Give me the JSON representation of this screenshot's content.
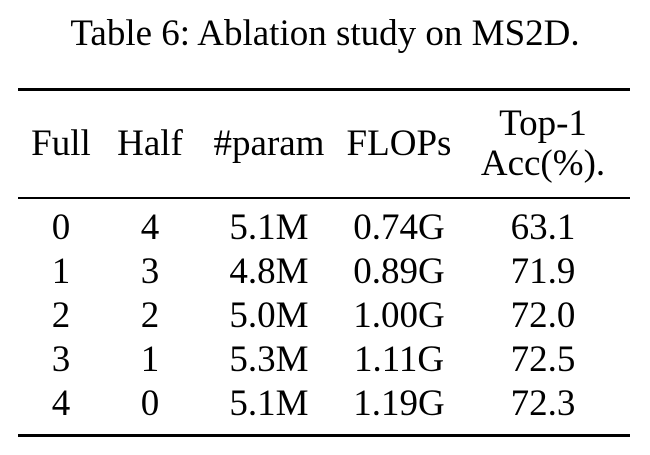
{
  "caption": "Table 6: Ablation study on MS2D.",
  "table": {
    "headers": [
      {
        "key": "full",
        "line1": "Full",
        "line2": ""
      },
      {
        "key": "half",
        "line1": "Half",
        "line2": ""
      },
      {
        "key": "param",
        "line1": "#param",
        "line2": ""
      },
      {
        "key": "flops",
        "line1": "FLOPs",
        "line2": ""
      },
      {
        "key": "acc",
        "line1": "Top-1",
        "line2": "Acc(%)."
      }
    ],
    "rows": [
      [
        "0",
        "4",
        "5.1M",
        "0.74G",
        "63.1"
      ],
      [
        "1",
        "3",
        "4.8M",
        "0.89G",
        "71.9"
      ],
      [
        "2",
        "2",
        "5.0M",
        "1.00G",
        "72.0"
      ],
      [
        "3",
        "1",
        "5.3M",
        "1.11G",
        "72.5"
      ],
      [
        "4",
        "0",
        "5.1M",
        "1.19G",
        "72.3"
      ]
    ]
  }
}
